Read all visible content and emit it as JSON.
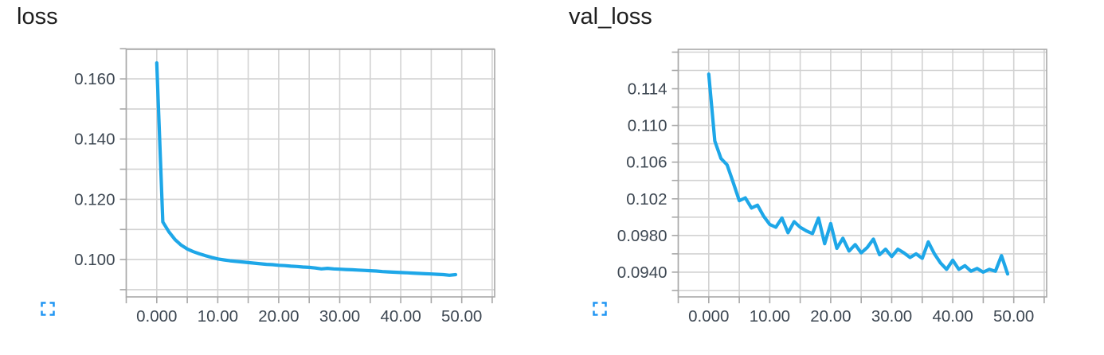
{
  "ui": {
    "icon_color": "#2196f3",
    "colors": {
      "line_blue": "#1ea7e8",
      "grid": "#d2d2d2",
      "axis_border": "#a8a8a8",
      "tick_text": "#3d4752",
      "title_text": "#1e1e1e",
      "background": "#ffffff"
    }
  },
  "chart_data": [
    {
      "type": "line",
      "title": "loss",
      "xlabel": "",
      "ylabel": "",
      "legend": "none",
      "grid": true,
      "x_range": [
        -5,
        55.4
      ],
      "y_range": [
        0.0876,
        0.1698
      ],
      "x_gridlines": [
        -5,
        0,
        5,
        10,
        15,
        20,
        25,
        30,
        35,
        40,
        45,
        50,
        55
      ],
      "y_gridlines": [
        0.09,
        0.1,
        0.11,
        0.12,
        0.13,
        0.14,
        0.15,
        0.16,
        0.17
      ],
      "x_tick_labels": [
        {
          "v": 0,
          "label": "0.000"
        },
        {
          "v": 10,
          "label": "10.00"
        },
        {
          "v": 20,
          "label": "20.00"
        },
        {
          "v": 30,
          "label": "30.00"
        },
        {
          "v": 40,
          "label": "40.00"
        },
        {
          "v": 50,
          "label": "50.00"
        }
      ],
      "y_tick_labels": [
        {
          "v": 0.1,
          "label": "0.100"
        },
        {
          "v": 0.12,
          "label": "0.120"
        },
        {
          "v": 0.14,
          "label": "0.140"
        },
        {
          "v": 0.16,
          "label": "0.160"
        }
      ],
      "line_color": "#1ea7e8",
      "x": [
        0,
        1,
        2,
        3,
        4,
        5,
        6,
        7,
        8,
        9,
        10,
        11,
        12,
        13,
        14,
        15,
        16,
        17,
        18,
        19,
        20,
        21,
        22,
        23,
        24,
        25,
        26,
        27,
        28,
        29,
        30,
        31,
        32,
        33,
        34,
        35,
        36,
        37,
        38,
        39,
        40,
        41,
        42,
        43,
        44,
        45,
        46,
        47,
        48,
        49
      ],
      "values": [
        0.1653,
        0.1125,
        0.1092,
        0.1066,
        0.1048,
        0.1035,
        0.1026,
        0.1019,
        0.1013,
        0.1007,
        0.1002,
        0.0999,
        0.0996,
        0.0994,
        0.0992,
        0.099,
        0.0988,
        0.0986,
        0.0984,
        0.0983,
        0.0981,
        0.098,
        0.0978,
        0.0977,
        0.0975,
        0.0974,
        0.0972,
        0.0969,
        0.0971,
        0.0969,
        0.0968,
        0.0967,
        0.0966,
        0.0965,
        0.0964,
        0.0963,
        0.0962,
        0.096,
        0.0959,
        0.0958,
        0.0957,
        0.0956,
        0.0955,
        0.0954,
        0.0953,
        0.0952,
        0.0951,
        0.095,
        0.0948,
        0.095
      ]
    },
    {
      "type": "line",
      "title": "val_loss",
      "xlabel": "",
      "ylabel": "",
      "legend": "none",
      "grid": true,
      "x_range": [
        -5,
        55.4
      ],
      "y_range": [
        0.0913,
        0.1183
      ],
      "x_gridlines": [
        -5,
        0,
        5,
        10,
        15,
        20,
        25,
        30,
        35,
        40,
        45,
        50,
        55
      ],
      "y_gridlines": [
        0.092,
        0.094,
        0.096,
        0.098,
        0.1,
        0.102,
        0.104,
        0.106,
        0.108,
        0.11,
        0.112,
        0.114,
        0.116,
        0.118
      ],
      "x_tick_labels": [
        {
          "v": 0,
          "label": "0.000"
        },
        {
          "v": 10,
          "label": "10.00"
        },
        {
          "v": 20,
          "label": "20.00"
        },
        {
          "v": 30,
          "label": "30.00"
        },
        {
          "v": 40,
          "label": "40.00"
        },
        {
          "v": 50,
          "label": "50.00"
        }
      ],
      "y_tick_labels": [
        {
          "v": 0.094,
          "label": "0.0940"
        },
        {
          "v": 0.098,
          "label": "0.0980"
        },
        {
          "v": 0.102,
          "label": "0.102"
        },
        {
          "v": 0.106,
          "label": "0.106"
        },
        {
          "v": 0.11,
          "label": "0.110"
        },
        {
          "v": 0.114,
          "label": "0.114"
        }
      ],
      "line_color": "#1ea7e8",
      "x": [
        0,
        1,
        2,
        3,
        4,
        5,
        6,
        7,
        8,
        9,
        10,
        11,
        12,
        13,
        14,
        15,
        16,
        17,
        18,
        19,
        20,
        21,
        22,
        23,
        24,
        25,
        26,
        27,
        28,
        29,
        30,
        31,
        32,
        33,
        34,
        35,
        36,
        37,
        38,
        39,
        40,
        41,
        42,
        43,
        44,
        45,
        46,
        47,
        48,
        49
      ],
      "values": [
        0.1156,
        0.1083,
        0.1064,
        0.1057,
        0.1038,
        0.1018,
        0.1021,
        0.101,
        0.1013,
        0.1001,
        0.0992,
        0.0989,
        0.0999,
        0.0983,
        0.0995,
        0.0989,
        0.0985,
        0.0982,
        0.0999,
        0.0971,
        0.0993,
        0.0966,
        0.0977,
        0.0963,
        0.097,
        0.0961,
        0.0967,
        0.0976,
        0.0959,
        0.0965,
        0.0957,
        0.0965,
        0.0961,
        0.0956,
        0.096,
        0.0955,
        0.0973,
        0.096,
        0.095,
        0.0943,
        0.0953,
        0.0943,
        0.0947,
        0.0941,
        0.0944,
        0.094,
        0.0943,
        0.0941,
        0.0958,
        0.0938
      ]
    }
  ]
}
